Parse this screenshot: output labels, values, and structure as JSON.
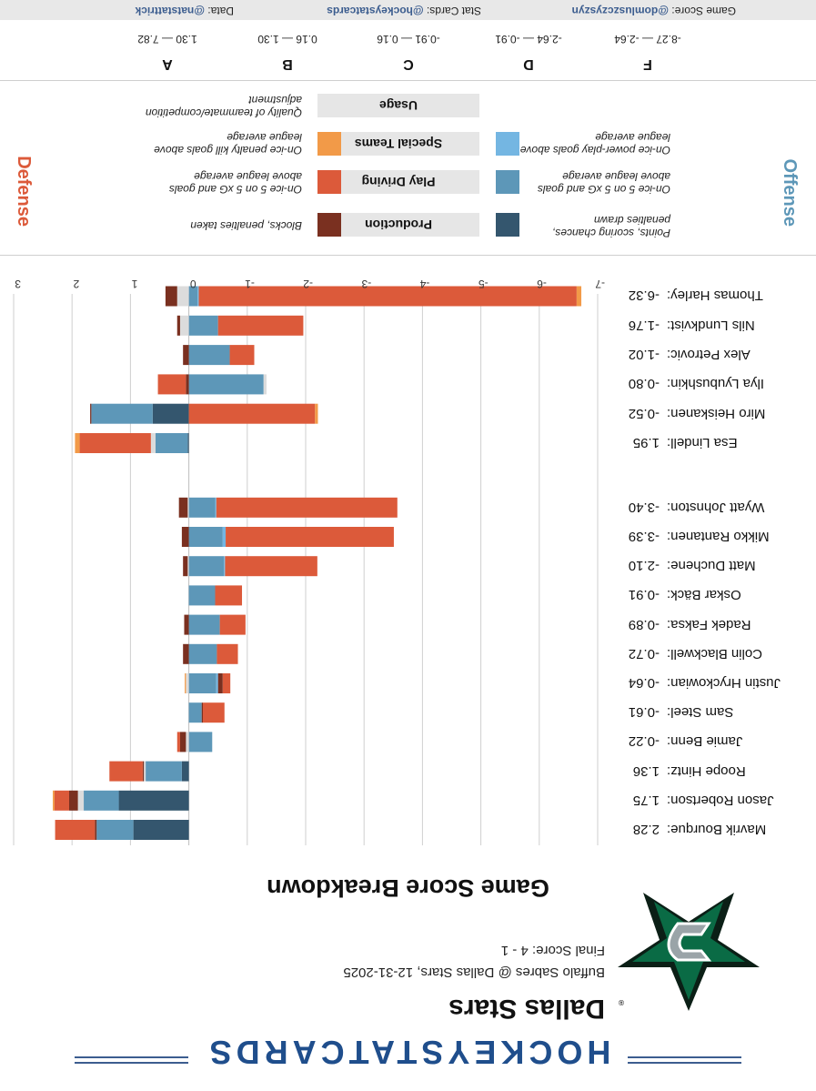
{
  "brand": "HOCKEYSTATCARDS",
  "team": "Dallas Stars",
  "matchup": "Buffalo Sabres @ Dallas Stars, 12-31-2025",
  "final_score": "Final Score: 4 - 1",
  "colors": {
    "production_off": "#34566e",
    "play_driving_off": "#5d97b8",
    "special_teams_off": "#74b6e2",
    "production_def": "#7a3020",
    "play_driving_def": "#dc5a3a",
    "special_teams_def": "#f29a48",
    "usage": "#dcdcdc",
    "axis": "#cfcfcf"
  },
  "chart_data": {
    "type": "bar",
    "title": "Game Score Breakdown",
    "orientation": "horizontal-stacked-diverging",
    "xlim": [
      -7,
      3
    ],
    "ticks": [
      "-7",
      "-6",
      "-5",
      "-4",
      "-3",
      "-2",
      "-1",
      "0",
      "1",
      "2",
      "3"
    ],
    "tick_values": [
      -7,
      -6,
      -5,
      -4,
      -3,
      -2,
      -1,
      0,
      1,
      2,
      3
    ],
    "segment_order": [
      "production_off",
      "play_driving_off",
      "special_teams_off",
      "usage",
      "production_def",
      "play_driving_def",
      "special_teams_def"
    ],
    "forwards": [
      {
        "name": "Mavrik Bourque:",
        "score": "2.28",
        "total": 2.28,
        "segments": [
          0.95,
          0.63,
          0,
          0,
          0.03,
          0.68,
          0
        ]
      },
      {
        "name": "Jason Robertson:",
        "score": "1.75",
        "total": 1.75,
        "segments": [
          1.2,
          0.6,
          0,
          0.1,
          0.15,
          0.25,
          0.03
        ]
      },
      {
        "name": "Roope Hintz:",
        "score": "1.36",
        "total": 1.36,
        "segments": [
          0.12,
          0.62,
          0,
          0.03,
          0.02,
          0.57,
          0
        ]
      },
      {
        "name": "Jamie Benn:",
        "score": "-0.22",
        "total": -0.22,
        "segments": [
          0,
          -0.4,
          0,
          0.05,
          0.1,
          0.05,
          0
        ]
      },
      {
        "name": "Sam Steel:",
        "score": "-0.61",
        "total": -0.61,
        "segments": [
          0,
          -0.22,
          0,
          0,
          -0.02,
          -0.37,
          0
        ]
      },
      {
        "name": "Justin Hryckowian:",
        "score": "-0.64",
        "total": -0.64,
        "segments": [
          0,
          -0.47,
          -0.03,
          0.05,
          -0.08,
          -0.13,
          0.02
        ]
      },
      {
        "name": "Colin Blackwell:",
        "score": "-0.72",
        "total": -0.72,
        "segments": [
          0,
          -0.48,
          0,
          0,
          0.1,
          -0.36,
          0
        ]
      },
      {
        "name": "Radek Faksa:",
        "score": "-0.89",
        "total": -0.89,
        "segments": [
          0,
          -0.53,
          0,
          0,
          0.08,
          -0.44,
          0
        ]
      },
      {
        "name": "Oskar Bäck:",
        "score": "-0.91",
        "total": -0.91,
        "segments": [
          0,
          -0.45,
          0,
          0,
          0,
          -0.46,
          0
        ]
      },
      {
        "name": "Matt Duchene:",
        "score": "-2.10",
        "total": -2.1,
        "segments": [
          0,
          -0.6,
          -0.02,
          0.02,
          0.08,
          -1.58,
          0
        ]
      },
      {
        "name": "Mikko Rantanen:",
        "score": "-3.39",
        "total": -3.39,
        "segments": [
          0,
          -0.58,
          -0.05,
          0,
          0.12,
          -2.88,
          0
        ]
      },
      {
        "name": "Wyatt Johnston:",
        "score": "-3.40",
        "total": -3.4,
        "segments": [
          0,
          -0.45,
          -0.02,
          0.02,
          0.15,
          -3.1,
          0
        ]
      }
    ],
    "defense": [
      {
        "name": "Esa Lindell:",
        "score": "1.95",
        "total": 1.95,
        "segments": [
          0.02,
          0.55,
          0,
          0.08,
          0,
          1.22,
          0.08
        ]
      },
      {
        "name": "Miro Heiskanen:",
        "score": "-0.52",
        "total": -0.52,
        "segments": [
          0.62,
          1.05,
          0,
          0,
          0.02,
          -2.16,
          -0.05
        ]
      },
      {
        "name": "Ilya Lyubushkin:",
        "score": "-0.80",
        "total": -0.8,
        "segments": [
          0,
          -1.28,
          0,
          -0.05,
          0.05,
          0.48,
          0
        ]
      },
      {
        "name": "Alex Petrovic:",
        "score": "-1.02",
        "total": -1.02,
        "segments": [
          0,
          -0.7,
          0,
          0,
          0.1,
          -0.42,
          0
        ]
      },
      {
        "name": "Nils Lundkvist:",
        "score": "-1.76",
        "total": -1.76,
        "segments": [
          0,
          -0.5,
          0,
          0.15,
          0.05,
          -1.46,
          0
        ]
      },
      {
        "name": "Thomas Harley:",
        "score": "-6.32",
        "total": -6.32,
        "segments": [
          0,
          -0.15,
          -0.02,
          0.2,
          0.2,
          -6.47,
          -0.08
        ]
      }
    ]
  },
  "legend": {
    "offense": "Offense",
    "defense": "Defense",
    "rows": [
      {
        "label": "Production",
        "off_desc": "Points, scoring chances, penalties drawn",
        "def_desc": "Blocks, penalties taken"
      },
      {
        "label": "Play Driving",
        "off_desc": "On-ice 5 on 5 xG and goals above league average",
        "def_desc": "On-ice 5 on 5 xG and goals above league average"
      },
      {
        "label": "Special Teams",
        "off_desc": "On-ice power-play goals above league average",
        "def_desc": "On-ice penalty kill goals above league average"
      },
      {
        "label": "Usage",
        "off_desc": "",
        "def_desc": "Quality of teammate/competition adjustment"
      }
    ]
  },
  "grades": [
    {
      "grade": "F",
      "range": "-8.27 — -2.64"
    },
    {
      "grade": "D",
      "range": "-2.64 — -0.91"
    },
    {
      "grade": "C",
      "range": "-0.91 — 0.16"
    },
    {
      "grade": "B",
      "range": "0.16 — 1.30"
    },
    {
      "grade": "A",
      "range": "1.30 — 7.82"
    }
  ],
  "footer": {
    "game_score_label": "Game Score:",
    "game_score_handle": "@domluszczyszyn",
    "stat_cards_label": "Stat Cards:",
    "stat_cards_handle": "@hockeystatcards",
    "data_label": "Data:",
    "data_handle": "@natstattrick"
  }
}
